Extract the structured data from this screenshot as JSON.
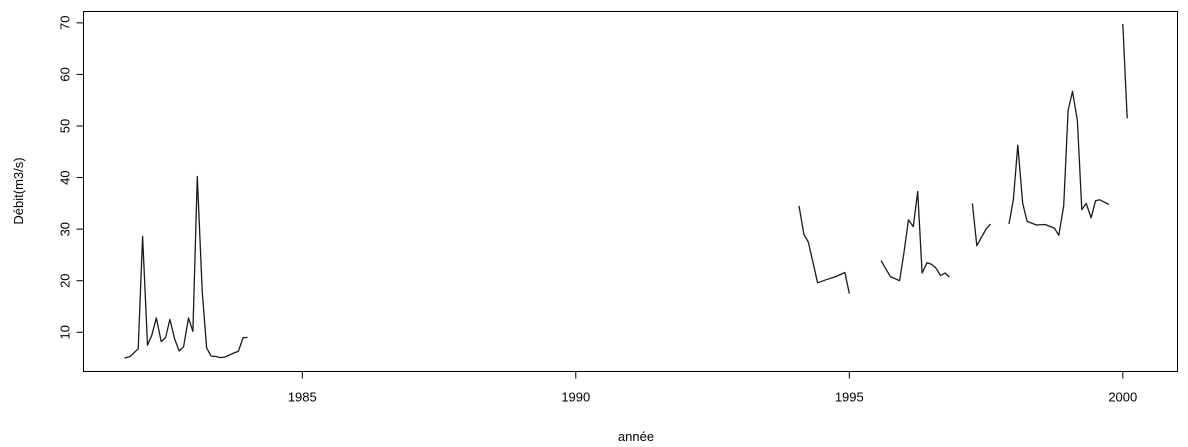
{
  "chart_data": {
    "type": "line",
    "title": "",
    "xlabel": "année",
    "ylabel": "Débit(m3/s)",
    "xlim": [
      1981.0,
      2001.0
    ],
    "ylim": [
      2.4,
      72.2
    ],
    "x_ticks": [
      1985,
      1990,
      1995,
      2000
    ],
    "y_ticks": [
      10,
      20,
      30,
      40,
      50,
      60,
      70
    ],
    "grid": false,
    "legend": "none",
    "line_color": "#1a1a1a",
    "segments": [
      {
        "x": [
          1981.75,
          1981.85,
          1982.0,
          1982.08,
          1982.17,
          1982.25,
          1982.33,
          1982.42,
          1982.5,
          1982.58,
          1982.67,
          1982.75,
          1982.83,
          1982.92,
          1983.0,
          1983.08,
          1983.17,
          1983.25,
          1983.33,
          1983.42,
          1983.5,
          1983.58,
          1983.67,
          1983.75,
          1983.83,
          1983.92,
          1984.0
        ],
        "y": [
          5.0,
          5.3,
          6.8,
          28.6,
          7.5,
          9.5,
          12.8,
          8.2,
          9.0,
          12.5,
          8.6,
          6.4,
          7.2,
          12.8,
          10.2,
          40.2,
          18.0,
          7.0,
          5.4,
          5.3,
          5.1,
          5.2,
          5.6,
          6.0,
          6.3,
          9.0,
          9.0
        ]
      },
      {
        "x": [
          1994.08,
          1994.17,
          1994.25,
          1994.42,
          1994.58,
          1994.75,
          1994.92,
          1995.0
        ],
        "y": [
          34.5,
          29.0,
          27.5,
          19.6,
          20.2,
          20.8,
          21.6,
          17.5
        ]
      },
      {
        "x": [
          1995.58,
          1995.75,
          1995.92,
          1996.0,
          1996.08,
          1996.17,
          1996.25,
          1996.33,
          1996.42,
          1996.5,
          1996.58,
          1996.67,
          1996.75,
          1996.83
        ],
        "y": [
          23.9,
          20.8,
          20.0,
          25.5,
          31.8,
          30.5,
          37.3,
          21.5,
          23.5,
          23.2,
          22.5,
          21.0,
          21.5,
          20.7
        ]
      },
      {
        "x": [
          1997.25,
          1997.33,
          1997.5,
          1997.58
        ],
        "y": [
          35.0,
          26.8,
          30.0,
          31.0
        ]
      },
      {
        "x": [
          1997.92,
          1998.0,
          1998.08,
          1998.17,
          1998.25,
          1998.42,
          1998.58,
          1998.75,
          1998.83,
          1998.92,
          1999.0,
          1999.08,
          1999.17,
          1999.25,
          1999.33,
          1999.42,
          1999.5,
          1999.58,
          1999.67,
          1999.75
        ],
        "y": [
          31.0,
          35.8,
          46.3,
          35.0,
          31.5,
          30.8,
          30.9,
          30.2,
          28.8,
          34.5,
          53.0,
          56.7,
          51.0,
          33.8,
          35.0,
          32.2,
          35.5,
          35.7,
          35.2,
          34.8
        ]
      },
      {
        "x": [
          2000.0,
          2000.08
        ],
        "y": [
          69.8,
          51.5
        ]
      }
    ]
  }
}
